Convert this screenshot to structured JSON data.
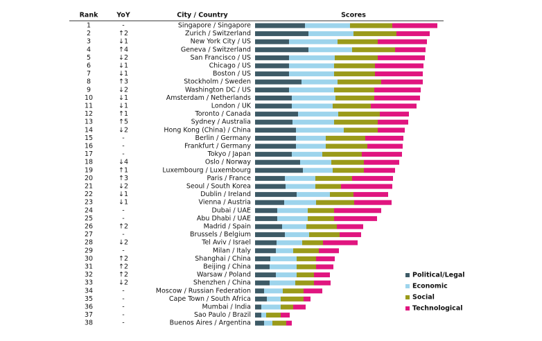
{
  "chart_data": {
    "type": "stacked-bar",
    "headers": {
      "rank": "Rank",
      "yoy": "YoY",
      "city": "City / Country",
      "scores": "Scores"
    },
    "ranks": [
      1,
      2,
      3,
      4,
      5,
      6,
      7,
      8,
      9,
      10,
      11,
      12,
      13,
      14,
      15,
      16,
      17,
      18,
      19,
      20,
      21,
      22,
      23,
      24,
      25,
      26,
      27,
      28,
      29,
      30,
      31,
      32,
      33,
      34,
      35,
      36,
      37,
      38
    ],
    "yoy": [
      "-",
      "↑2",
      "↓1",
      "↑4",
      "↓2",
      "↓1",
      "↓1",
      "↑3",
      "↓2",
      "↓1",
      "↓1",
      "↑1",
      "↑5",
      "↓2",
      "-",
      "-",
      "-",
      "↓4",
      "↑1",
      "↑3",
      "↓2",
      "↓1",
      "↓1",
      "-",
      "-",
      "↑2",
      "-",
      "↓2",
      "-",
      "↑2",
      "↑2",
      "↑2",
      "↓2",
      "-",
      "-",
      "-",
      "-",
      "-"
    ],
    "categories": [
      "Singapore / Singapore",
      "Zurich / Switzerland",
      "New York City / US",
      "Geneva / Switzerland",
      "San Francisco / US",
      "Chicago / US",
      "Boston / US",
      "Stockholm / Sweden",
      "Washington DC / US",
      "Amsterdam / Netherlands",
      "London / UK",
      "Toronto / Canada",
      "Sydney / Australia",
      "Hong Kong (China) / China",
      "Berlin / Germany",
      "Frankfurt / Germany",
      "Tokyo / Japan",
      "Oslo / Norway",
      "Luxembourg / Luxembourg",
      "Paris / France",
      "Seoul / South Korea",
      "Dublin / Ireland",
      "Vienna / Austria",
      "Dubai / UAE",
      "Abu Dhabi / UAE",
      "Madrid / Spain",
      "Brussels / Belgium",
      "Tel Aviv / Israel",
      "Milan / Italy",
      "Shanghai / China",
      "Beijing / China",
      "Warsaw / Poland",
      "Shenzhen / China",
      "Moscow / Russian Federation",
      "Cape Town / South Africa",
      "Mumbai / India",
      "Sao Paulo / Brazil",
      "Buenos Aires / Argentina"
    ],
    "series": [
      {
        "name": "Political/Legal",
        "color": "#3d5a66",
        "values": [
          72,
          77,
          49,
          77,
          49,
          49,
          49,
          67,
          49,
          53,
          53,
          62,
          54,
          59,
          59,
          59,
          53,
          65,
          69,
          43,
          44,
          60,
          42,
          32,
          32,
          39,
          43,
          31,
          30,
          22,
          21,
          30,
          21,
          13,
          17,
          9,
          9,
          13
        ]
      },
      {
        "name": "Economic",
        "color": "#9dd4ec",
        "values": [
          65,
          65,
          70,
          63,
          66,
          65,
          65,
          52,
          65,
          63,
          59,
          58,
          60,
          69,
          43,
          43,
          44,
          45,
          43,
          44,
          43,
          48,
          46,
          44,
          44,
          35,
          35,
          37,
          25,
          38,
          39,
          30,
          37,
          27,
          20,
          28,
          7,
          12
        ]
      },
      {
        "name": "Social",
        "color": "#9a9a1a",
        "values": [
          61,
          62,
          58,
          62,
          62,
          59,
          59,
          63,
          58,
          56,
          55,
          60,
          63,
          49,
          57,
          60,
          57,
          47,
          45,
          53,
          37,
          34,
          55,
          38,
          38,
          44,
          44,
          30,
          37,
          28,
          28,
          25,
          27,
          30,
          33,
          18,
          21,
          20
        ]
      },
      {
        "name": "Technological",
        "color": "#e0157f",
        "values": [
          65,
          48,
          71,
          44,
          68,
          70,
          69,
          60,
          67,
          66,
          66,
          42,
          44,
          39,
          55,
          51,
          58,
          51,
          45,
          59,
          74,
          50,
          54,
          68,
          62,
          38,
          31,
          50,
          29,
          27,
          25,
          23,
          24,
          27,
          10,
          18,
          13,
          8
        ]
      }
    ]
  }
}
